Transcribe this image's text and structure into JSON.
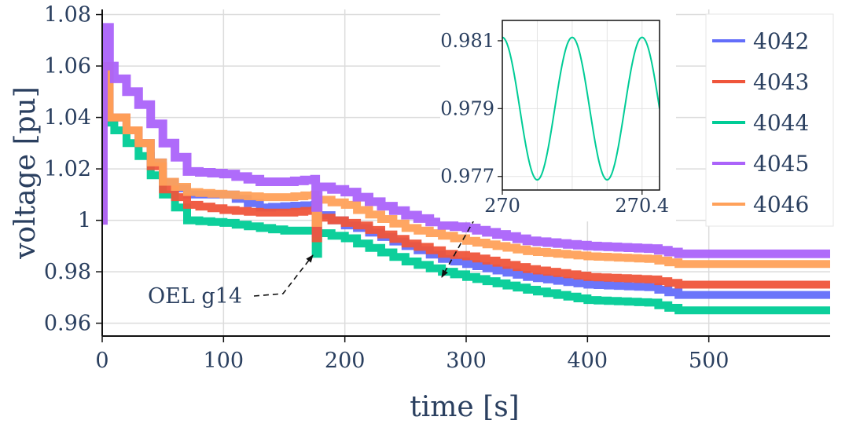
{
  "chart_data": [
    {
      "type": "line",
      "xlabel": "time [s]",
      "ylabel": "voltage [pu]",
      "xlim": [
        0,
        600
      ],
      "ylim": [
        0.955,
        1.082
      ],
      "xticks": [
        0,
        100,
        200,
        300,
        400,
        500
      ],
      "xtick_labels": [
        "0",
        "100",
        "200",
        "300",
        "400",
        "500"
      ],
      "yticks": [
        0.96,
        0.98,
        1.0,
        1.02,
        1.04,
        1.06,
        1.08
      ],
      "ytick_labels": [
        "0.96",
        "0.98",
        "1",
        "1.02",
        "1.04",
        "1.06",
        "1.08"
      ],
      "grid": true,
      "legend_position": "top-right",
      "series": [
        {
          "name": "4042",
          "color": "#636efa",
          "points": [
            [
              0,
              1.0
            ],
            [
              1,
              1.05
            ],
            [
              3,
              1.06
            ],
            [
              6,
              1.04
            ],
            [
              10,
              1.04
            ],
            [
              30,
              1.03
            ],
            [
              50,
              1.015
            ],
            [
              70,
              1.01
            ],
            [
              100,
              1.01
            ],
            [
              130,
              1.005
            ],
            [
              150,
              1.0055
            ],
            [
              175,
              1.006
            ],
            [
              176,
              0.995
            ],
            [
              178,
              1.002
            ],
            [
              200,
              0.998
            ],
            [
              210,
              0.997
            ],
            [
              250,
              0.99
            ],
            [
              280,
              0.985
            ],
            [
              300,
              0.983
            ],
            [
              350,
              0.978
            ],
            [
              400,
              0.975
            ],
            [
              450,
              0.974
            ],
            [
              475,
              0.971
            ],
            [
              600,
              0.971
            ]
          ]
        },
        {
          "name": "4043",
          "color": "#ef553b",
          "points": [
            [
              0,
              1.0
            ],
            [
              1,
              1.05
            ],
            [
              3,
              1.06
            ],
            [
              6,
              1.04
            ],
            [
              10,
              1.04
            ],
            [
              30,
              1.03
            ],
            [
              50,
              1.012
            ],
            [
              70,
              1.006
            ],
            [
              100,
              1.004
            ],
            [
              130,
              1.003
            ],
            [
              150,
              1.003
            ],
            [
              175,
              1.004
            ],
            [
              176,
              0.993
            ],
            [
              178,
              1.001
            ],
            [
              200,
              0.999
            ],
            [
              210,
              0.998
            ],
            [
              250,
              0.991
            ],
            [
              280,
              0.987
            ],
            [
              300,
              0.986
            ],
            [
              350,
              0.981
            ],
            [
              400,
              0.978
            ],
            [
              450,
              0.977
            ],
            [
              475,
              0.975
            ],
            [
              600,
              0.975
            ]
          ]
        },
        {
          "name": "4044",
          "color": "#00cc96",
          "points": [
            [
              0,
              1.0
            ],
            [
              1,
              1.045
            ],
            [
              3,
              1.05
            ],
            [
              6,
              1.038
            ],
            [
              10,
              1.035
            ],
            [
              30,
              1.025
            ],
            [
              50,
              1.01
            ],
            [
              70,
              1.0
            ],
            [
              100,
              0.999
            ],
            [
              130,
              0.997
            ],
            [
              150,
              0.996
            ],
            [
              175,
              0.996
            ],
            [
              176,
              0.987
            ],
            [
              178,
              0.995
            ],
            [
              200,
              0.993
            ],
            [
              210,
              0.991
            ],
            [
              250,
              0.984
            ],
            [
              280,
              0.98
            ],
            [
              300,
              0.978
            ],
            [
              350,
              0.973
            ],
            [
              400,
              0.969
            ],
            [
              450,
              0.968
            ],
            [
              475,
              0.965
            ],
            [
              600,
              0.965
            ]
          ]
        },
        {
          "name": "4045",
          "color": "#ab63fa",
          "points": [
            [
              0,
              1.0
            ],
            [
              1,
              1.07
            ],
            [
              3,
              1.075
            ],
            [
              6,
              1.06
            ],
            [
              10,
              1.055
            ],
            [
              30,
              1.045
            ],
            [
              50,
              1.03
            ],
            [
              70,
              1.019
            ],
            [
              100,
              1.018
            ],
            [
              130,
              1.015
            ],
            [
              150,
              1.015
            ],
            [
              175,
              1.016
            ],
            [
              176,
              1.005
            ],
            [
              178,
              1.013
            ],
            [
              200,
              1.011
            ],
            [
              210,
              1.009
            ],
            [
              250,
              1.002
            ],
            [
              280,
              0.998
            ],
            [
              300,
              0.997
            ],
            [
              350,
              0.992
            ],
            [
              400,
              0.99
            ],
            [
              450,
              0.989
            ],
            [
              475,
              0.987
            ],
            [
              600,
              0.987
            ]
          ]
        },
        {
          "name": "4046",
          "color": "#ffa15a",
          "points": [
            [
              0,
              1.0
            ],
            [
              1,
              1.05
            ],
            [
              3,
              1.06
            ],
            [
              6,
              1.04
            ],
            [
              10,
              1.04
            ],
            [
              30,
              1.03
            ],
            [
              50,
              1.015
            ],
            [
              70,
              1.011
            ],
            [
              100,
              1.01
            ],
            [
              130,
              1.009
            ],
            [
              150,
              1.009
            ],
            [
              175,
              1.01
            ],
            [
              176,
              0.999
            ],
            [
              178,
              1.008
            ],
            [
              200,
              1.006
            ],
            [
              210,
              1.004
            ],
            [
              250,
              0.997
            ],
            [
              280,
              0.994
            ],
            [
              300,
              0.992
            ],
            [
              350,
              0.988
            ],
            [
              400,
              0.986
            ],
            [
              450,
              0.985
            ],
            [
              475,
              0.983
            ],
            [
              600,
              0.983
            ]
          ]
        }
      ],
      "annotations": [
        {
          "text": "OEL g14",
          "x": 175,
          "y": 0.986
        }
      ]
    },
    {
      "type": "line",
      "role": "inset",
      "xlim": [
        270,
        270.45
      ],
      "ylim": [
        0.9766,
        0.9816
      ],
      "xticks": [
        270,
        270.4
      ],
      "xtick_labels": [
        "270",
        "270.4"
      ],
      "yticks": [
        0.977,
        0.979,
        0.981
      ],
      "ytick_labels": [
        "0.977",
        "0.979",
        "0.981"
      ],
      "series": [
        {
          "name": "4044",
          "color": "#00cc96",
          "mean": 0.979,
          "amplitude": 0.0021,
          "period": 0.2
        }
      ]
    }
  ]
}
